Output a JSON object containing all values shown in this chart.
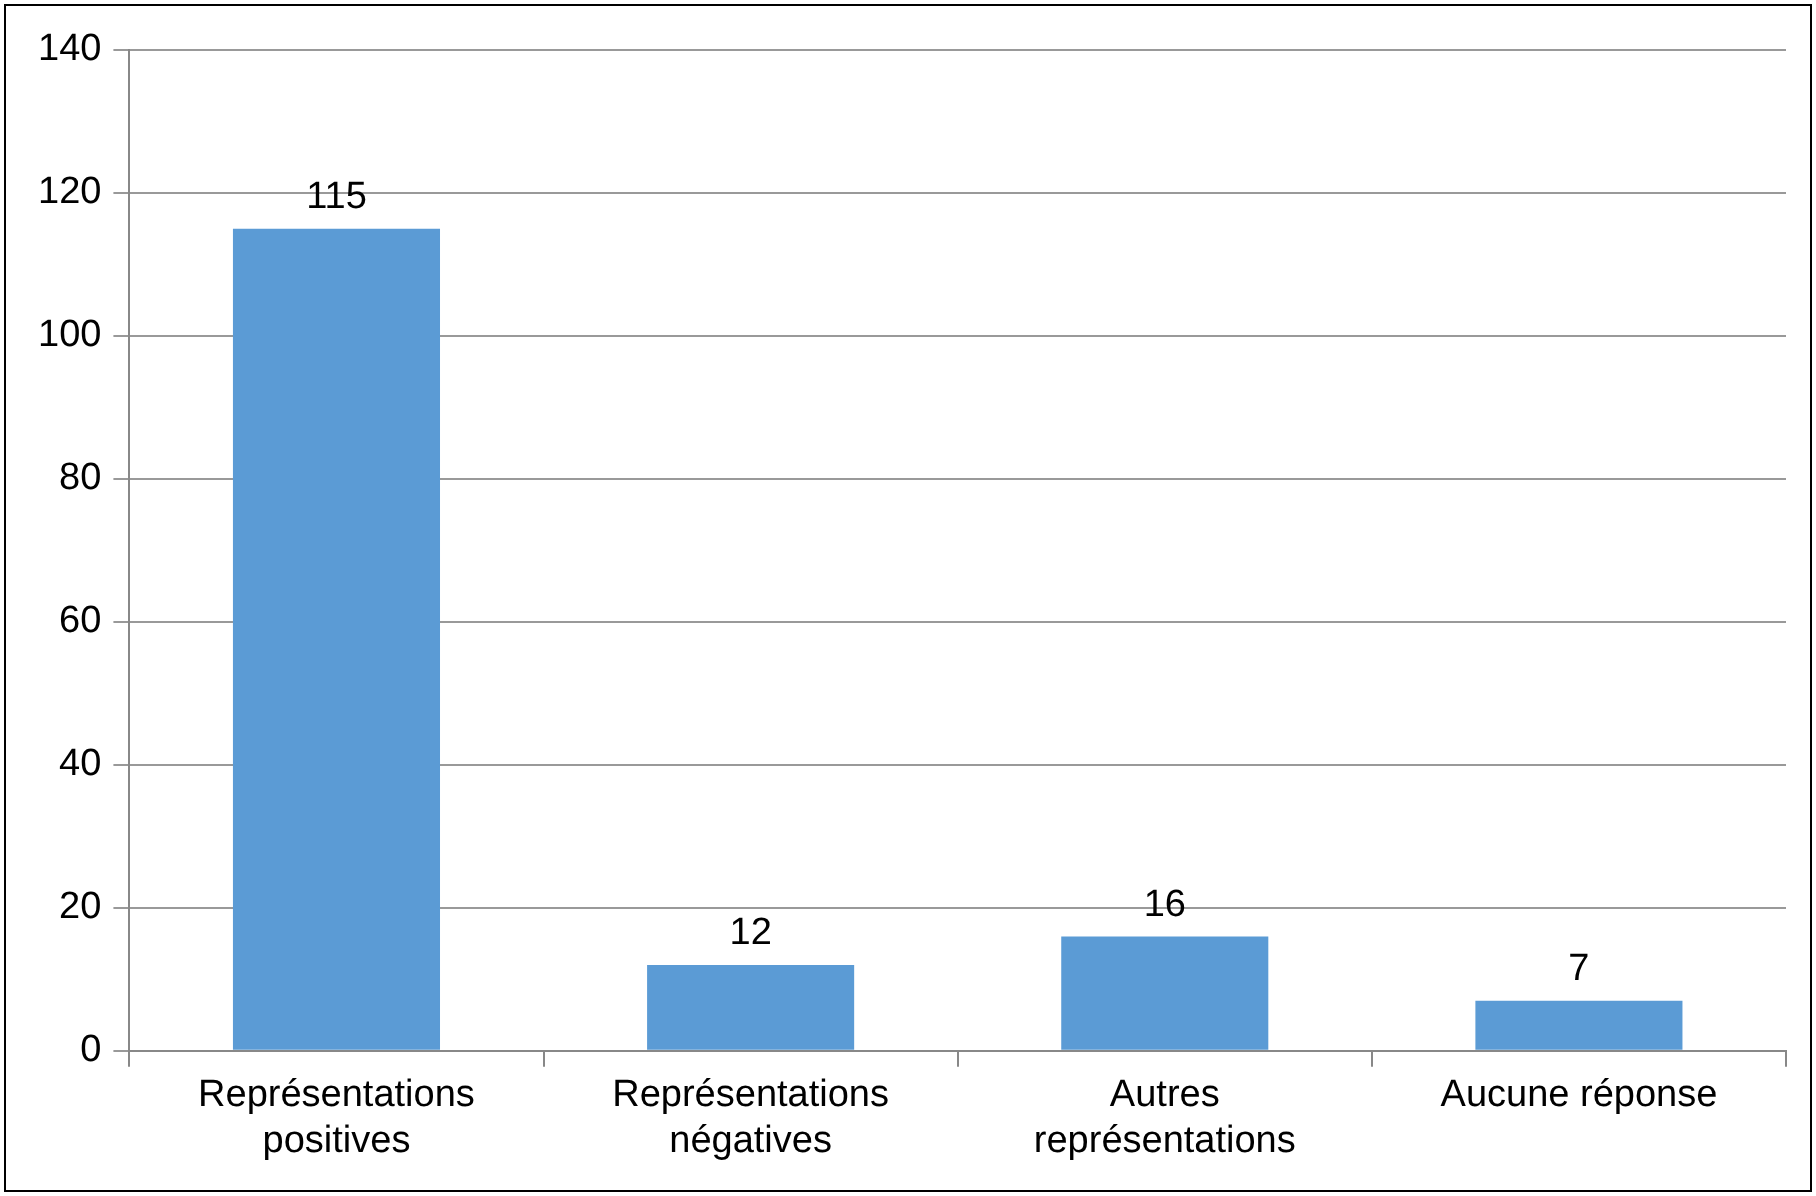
{
  "chart_data": {
    "type": "bar",
    "categories": [
      "Représentations positives",
      "Représentations négatives",
      "Autres représentations",
      "Aucune réponse"
    ],
    "values": [
      115,
      12,
      16,
      7
    ],
    "color": "#5b9bd5",
    "ylim": [
      0,
      140
    ],
    "yticks": [
      0,
      20,
      40,
      60,
      80,
      100,
      120,
      140
    ],
    "grid": "y",
    "legend": false,
    "data_labels": true
  }
}
